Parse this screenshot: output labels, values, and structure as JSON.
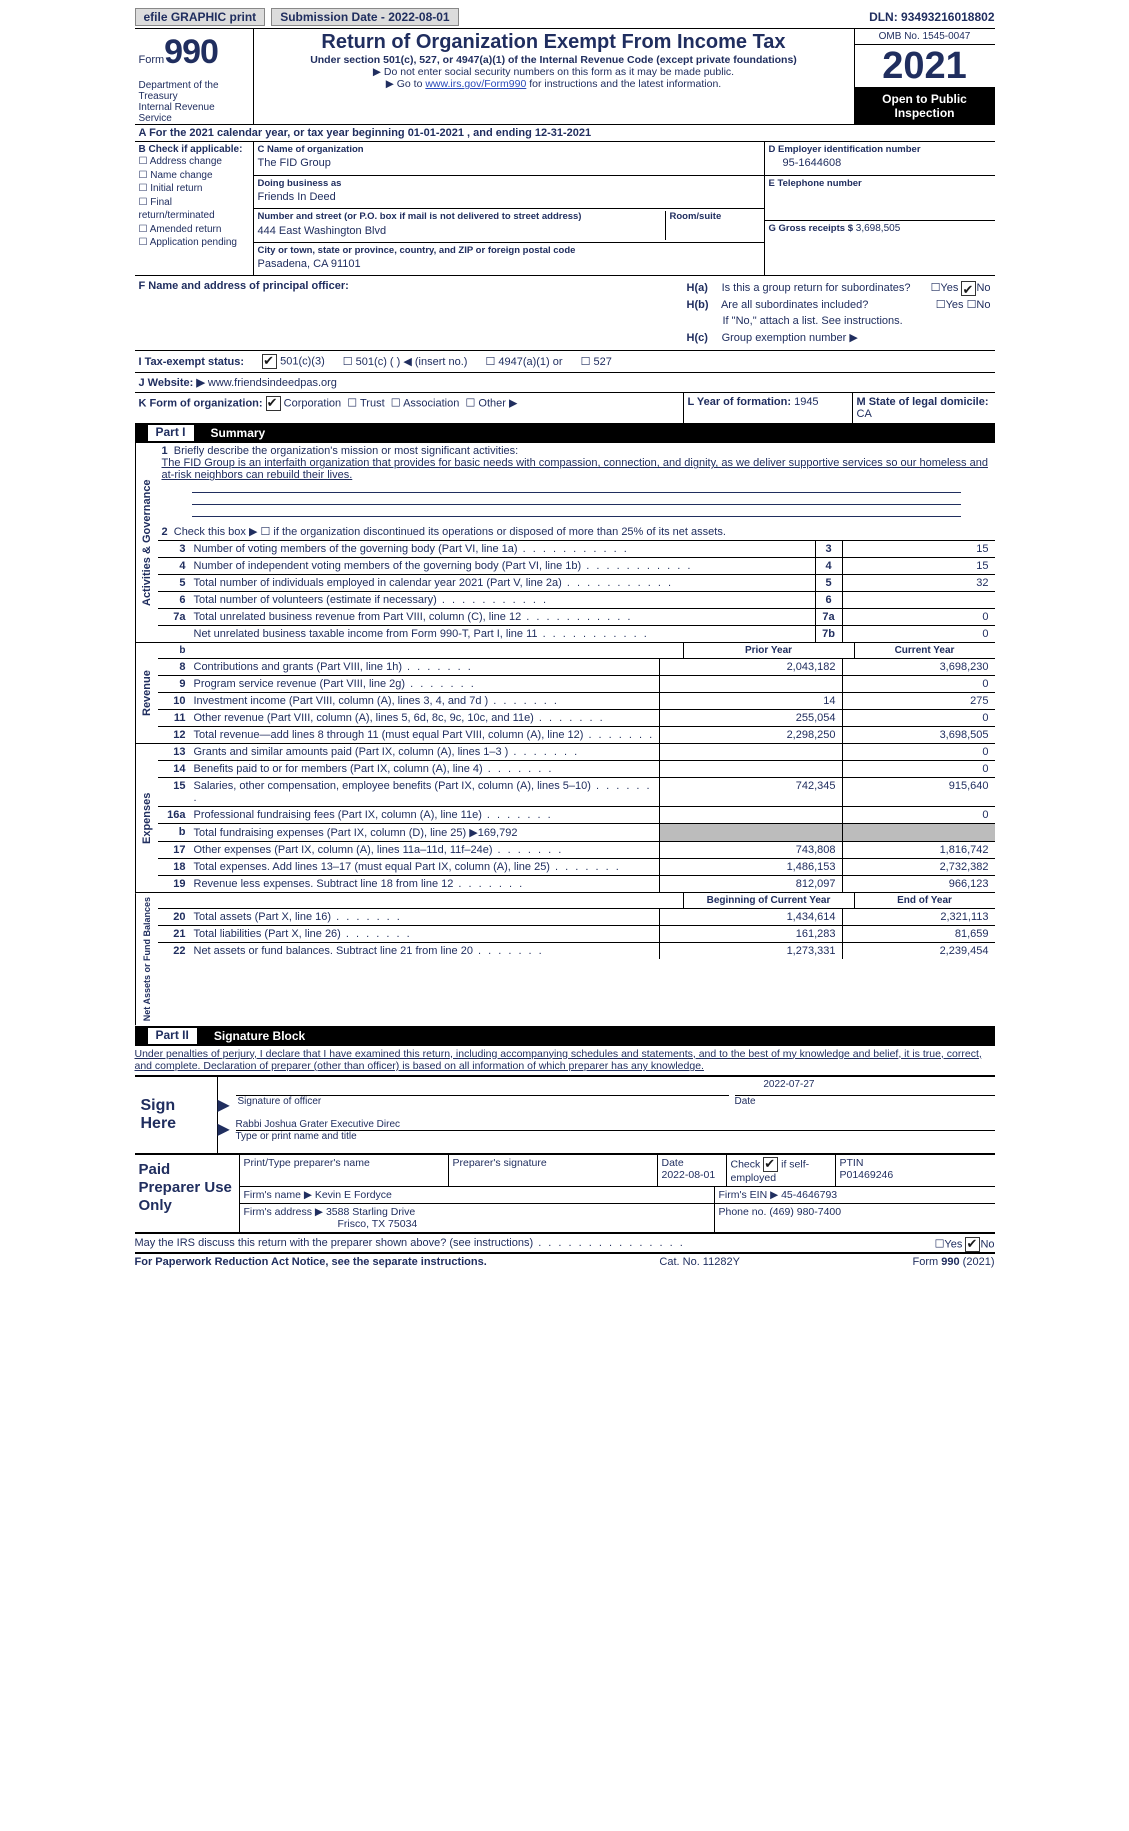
{
  "topbar": {
    "efile": "efile GRAPHIC print",
    "submission_label": "Submission Date - 2022-08-01",
    "dln": "DLN: 93493216018802"
  },
  "header": {
    "form_word": "Form",
    "form_num": "990",
    "dept": "Department of the Treasury\nInternal Revenue Service",
    "title": "Return of Organization Exempt From Income Tax",
    "sub1": "Under section 501(c), 527, or 4947(a)(1) of the Internal Revenue Code (except private foundations)",
    "sub2": "▶ Do not enter social security numbers on this form as it may be made public.",
    "sub3_pre": "▶ Go to ",
    "sub3_link": "www.irs.gov/Form990",
    "sub3_post": " for instructions and the latest information.",
    "omb": "OMB No. 1545-0047",
    "year": "2021",
    "open": "Open to Public Inspection"
  },
  "rowA": "A For the 2021 calendar year, or tax year beginning 01-01-2021   , and ending 12-31-2021",
  "colB": {
    "label": "B Check if applicable:",
    "items": [
      "Address change",
      "Name change",
      "Initial return",
      "Final return/terminated",
      "Amended return",
      "Application pending"
    ]
  },
  "colC": {
    "name_lbl": "C Name of organization",
    "name": "The FID Group",
    "dba_lbl": "Doing business as",
    "dba": "Friends In Deed",
    "street_lbl": "Number and street (or P.O. box if mail is not delivered to street address)",
    "room_lbl": "Room/suite",
    "street": "444 East Washington Blvd",
    "city_lbl": "City or town, state or province, country, and ZIP or foreign postal code",
    "city": "Pasadena, CA  91101"
  },
  "colD": {
    "ein_lbl": "D Employer identification number",
    "ein": "95-1644608",
    "tel_lbl": "E Telephone number",
    "gross_lbl": "G Gross receipts $",
    "gross": "3,698,505"
  },
  "rowF": {
    "lbl": "F  Name and address of principal officer:",
    "Ha": "Is this a group return for subordinates?",
    "Hb": "Are all subordinates included?",
    "Hb_note": "If \"No,\" attach a list. See instructions.",
    "Hc": "Group exemption number ▶"
  },
  "rowI": {
    "lbl": "I   Tax-exempt status:",
    "o1": "501(c)(3)",
    "o2": "501(c) (  ) ◀ (insert no.)",
    "o3": "4947(a)(1) or",
    "o4": "527"
  },
  "rowJ": {
    "lbl": "J   Website: ▶",
    "val": "www.friendsindeedpas.org"
  },
  "rowK": {
    "lbl": "K Form of organization:",
    "opts": [
      "Corporation",
      "Trust",
      "Association",
      "Other ▶"
    ],
    "year_lbl": "L Year of formation:",
    "year_val": "1945",
    "state_lbl": "M State of legal domicile:",
    "state_val": "CA"
  },
  "part1": {
    "num": "Part I",
    "title": "Summary"
  },
  "mission_lbl": "Briefly describe the organization's mission or most significant activities:",
  "mission": "The FID Group is an interfaith organization that provides for basic needs with compassion, connection, and dignity, as we deliver supportive services so our homeless and at-risk neighbors can rebuild their lives.",
  "line2": "Check this box ▶ ☐  if the organization discontinued its operations or disposed of more than 25% of its net assets.",
  "lines_gov": [
    {
      "n": "3",
      "d": "Number of voting members of the governing body (Part VI, line 1a)",
      "box": "3",
      "v": "15"
    },
    {
      "n": "4",
      "d": "Number of independent voting members of the governing body (Part VI, line 1b)",
      "box": "4",
      "v": "15"
    },
    {
      "n": "5",
      "d": "Total number of individuals employed in calendar year 2021 (Part V, line 2a)",
      "box": "5",
      "v": "32"
    },
    {
      "n": "6",
      "d": "Total number of volunteers (estimate if necessary)",
      "box": "6",
      "v": ""
    },
    {
      "n": "7a",
      "d": "Total unrelated business revenue from Part VIII, column (C), line 12",
      "box": "7a",
      "v": "0"
    },
    {
      "n": "",
      "d": "Net unrelated business taxable income from Form 990-T, Part I, line 11",
      "box": "7b",
      "v": "0"
    }
  ],
  "col_hdr": {
    "prior": "Prior Year",
    "current": "Current Year"
  },
  "lines_rev": [
    {
      "n": "8",
      "d": "Contributions and grants (Part VIII, line 1h)",
      "p": "2,043,182",
      "c": "3,698,230"
    },
    {
      "n": "9",
      "d": "Program service revenue (Part VIII, line 2g)",
      "p": "",
      "c": "0"
    },
    {
      "n": "10",
      "d": "Investment income (Part VIII, column (A), lines 3, 4, and 7d )",
      "p": "14",
      "c": "275"
    },
    {
      "n": "11",
      "d": "Other revenue (Part VIII, column (A), lines 5, 6d, 8c, 9c, 10c, and 11e)",
      "p": "255,054",
      "c": "0"
    },
    {
      "n": "12",
      "d": "Total revenue—add lines 8 through 11 (must equal Part VIII, column (A), line 12)",
      "p": "2,298,250",
      "c": "3,698,505"
    }
  ],
  "lines_exp": [
    {
      "n": "13",
      "d": "Grants and similar amounts paid (Part IX, column (A), lines 1–3 )",
      "p": "",
      "c": "0"
    },
    {
      "n": "14",
      "d": "Benefits paid to or for members (Part IX, column (A), line 4)",
      "p": "",
      "c": "0"
    },
    {
      "n": "15",
      "d": "Salaries, other compensation, employee benefits (Part IX, column (A), lines 5–10)",
      "p": "742,345",
      "c": "915,640"
    },
    {
      "n": "16a",
      "d": "Professional fundraising fees (Part IX, column (A), line 11e)",
      "p": "",
      "c": "0"
    },
    {
      "n": "b",
      "d": "Total fundraising expenses (Part IX, column (D), line 25) ▶169,792",
      "p": "grey",
      "c": "grey"
    },
    {
      "n": "17",
      "d": "Other expenses (Part IX, column (A), lines 11a–11d, 11f–24e)",
      "p": "743,808",
      "c": "1,816,742"
    },
    {
      "n": "18",
      "d": "Total expenses. Add lines 13–17 (must equal Part IX, column (A), line 25)",
      "p": "1,486,153",
      "c": "2,732,382"
    },
    {
      "n": "19",
      "d": "Revenue less expenses. Subtract line 18 from line 12",
      "p": "812,097",
      "c": "966,123"
    }
  ],
  "col_hdr2": {
    "begin": "Beginning of Current Year",
    "end": "End of Year"
  },
  "lines_net": [
    {
      "n": "20",
      "d": "Total assets (Part X, line 16)",
      "p": "1,434,614",
      "c": "2,321,113"
    },
    {
      "n": "21",
      "d": "Total liabilities (Part X, line 26)",
      "p": "161,283",
      "c": "81,659"
    },
    {
      "n": "22",
      "d": "Net assets or fund balances. Subtract line 21 from line 20",
      "p": "1,273,331",
      "c": "2,239,454"
    }
  ],
  "sides": {
    "gov": "Activities & Governance",
    "rev": "Revenue",
    "exp": "Expenses",
    "net": "Net Assets or Fund Balances"
  },
  "part2": {
    "num": "Part II",
    "title": "Signature Block"
  },
  "perjury": "Under penalties of perjury, I declare that I have examined this return, including accompanying schedules and statements, and to the best of my knowledge and belief, it is true, correct, and complete. Declaration of preparer (other than officer) is based on all information of which preparer has any knowledge.",
  "sign": {
    "here": "Sign Here",
    "sig_lbl": "Signature of officer",
    "date": "2022-07-27",
    "date_lbl": "Date",
    "name": "Rabbi Joshua Grater  Executive Direc",
    "name_lbl": "Type or print name and title"
  },
  "paid": {
    "lbl": "Paid Preparer Use Only",
    "c1": "Print/Type preparer's name",
    "c2": "Preparer's signature",
    "c3_lbl": "Date",
    "c3": "2022-08-01",
    "c4_lbl": "Check",
    "c4_2": "if self-employed",
    "c5_lbl": "PTIN",
    "c5": "P01469246",
    "firm_name_lbl": "Firm's name    ▶",
    "firm_name": "Kevin E Fordyce",
    "firm_ein_lbl": "Firm's EIN ▶",
    "firm_ein": "45-4646793",
    "firm_addr_lbl": "Firm's address ▶",
    "firm_addr1": "3588 Starling Drive",
    "firm_addr2": "Frisco, TX  75034",
    "phone_lbl": "Phone no.",
    "phone": "(469) 980-7400"
  },
  "discuss": "May the IRS discuss this return with the preparer shown above? (see instructions)",
  "footer": {
    "l": "For Paperwork Reduction Act Notice, see the separate instructions.",
    "m": "Cat. No. 11282Y",
    "r": "Form 990 (2021)"
  }
}
